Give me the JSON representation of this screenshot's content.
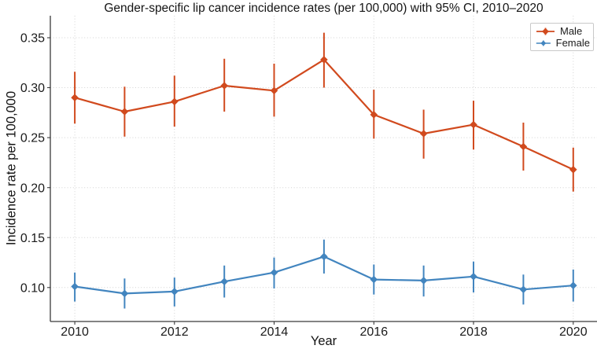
{
  "chart_data": {
    "type": "line",
    "title": "Gender-specific lip cancer incidence rates (per 100,000) with 95% CI, 2010–2020",
    "xlabel": "Year",
    "ylabel": "Incidence rate per 100,000",
    "x": [
      2010,
      2011,
      2012,
      2013,
      2014,
      2015,
      2016,
      2017,
      2018,
      2019,
      2020
    ],
    "xticks": [
      2010,
      2012,
      2014,
      2016,
      2018,
      2020
    ],
    "yticks": [
      0.1,
      0.15,
      0.2,
      0.25,
      0.3,
      0.35
    ],
    "xlim": [
      2009.51,
      2020.43
    ],
    "ylim": [
      0.066,
      0.372
    ],
    "grid": true,
    "legend_position": "upper right",
    "background_color": "#ffffff",
    "grid_color": "#d3d3d3",
    "series": [
      {
        "name": "Male",
        "color": "#d14a1e",
        "marker": "diamond",
        "values": [
          0.29,
          0.276,
          0.286,
          0.302,
          0.297,
          0.328,
          0.273,
          0.254,
          0.263,
          0.241,
          0.218
        ],
        "ci_lower": [
          0.264,
          0.251,
          0.261,
          0.276,
          0.271,
          0.3,
          0.249,
          0.229,
          0.238,
          0.217,
          0.196
        ],
        "ci_upper": [
          0.316,
          0.301,
          0.312,
          0.329,
          0.324,
          0.355,
          0.298,
          0.278,
          0.287,
          0.265,
          0.24
        ]
      },
      {
        "name": "Female",
        "color": "#4285bf",
        "marker": "diamond",
        "values": [
          0.101,
          0.094,
          0.096,
          0.106,
          0.115,
          0.131,
          0.108,
          0.107,
          0.111,
          0.098,
          0.102
        ],
        "ci_lower": [
          0.086,
          0.079,
          0.081,
          0.09,
          0.099,
          0.114,
          0.093,
          0.091,
          0.095,
          0.083,
          0.086
        ],
        "ci_upper": [
          0.115,
          0.109,
          0.11,
          0.122,
          0.13,
          0.148,
          0.123,
          0.122,
          0.126,
          0.113,
          0.118
        ]
      }
    ]
  }
}
